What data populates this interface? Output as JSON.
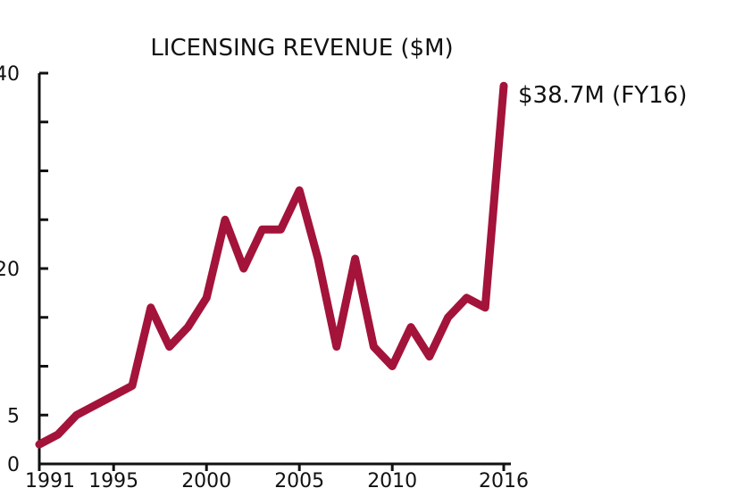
{
  "chart_data": {
    "type": "line",
    "title": "LICENSING REVENUE ($M)",
    "xlabel": "",
    "ylabel": "",
    "xlim": [
      1991,
      2016
    ],
    "ylim": [
      0,
      40
    ],
    "x_ticks": [
      "1991",
      "1995",
      "2000",
      "2005",
      "2010",
      "2016"
    ],
    "y_tick_labels": [
      "0",
      "5",
      "20",
      "40"
    ],
    "y_minor_ticks": [
      10,
      15,
      25,
      30,
      35
    ],
    "grid": false,
    "legend": "none",
    "line_color": "#A3133A",
    "annotation": "$38.7M (FY16)",
    "series": [
      {
        "x": [
          1991,
          1992,
          1993,
          1994,
          1995,
          1996,
          1997,
          1998,
          1999,
          2000,
          2001,
          2002,
          2003,
          2004,
          2005,
          2006,
          2007,
          2008,
          2009,
          2010,
          2011,
          2012,
          2013,
          2014,
          2015,
          2016
        ],
        "values": [
          2.0,
          3.0,
          5.0,
          6.0,
          7.0,
          8.0,
          16.0,
          12.0,
          14.0,
          17.0,
          25.0,
          20.0,
          24.0,
          24.0,
          28.0,
          21.0,
          12.0,
          21.0,
          12.0,
          10.0,
          14.0,
          11.0,
          15.0,
          17.0,
          16.0,
          38.7
        ]
      }
    ]
  }
}
